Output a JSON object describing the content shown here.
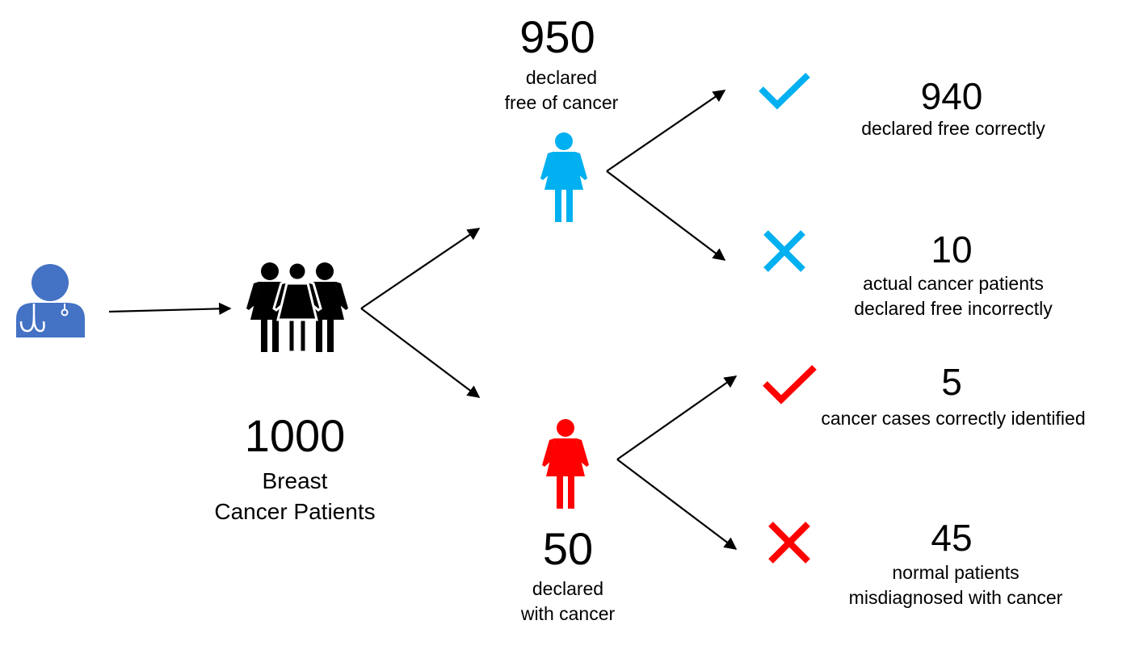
{
  "colors": {
    "doctor": "#4472C4",
    "negative": "#00B0F0",
    "positive": "#FF0000",
    "arrow": "#000000",
    "group": "#000000"
  },
  "icons": {
    "doctor": "doctor-icon",
    "group": "women-group-icon",
    "negative_person": "woman-icon",
    "positive_person": "woman-icon",
    "correct": "checkmark-icon",
    "incorrect": "cross-icon"
  },
  "total": {
    "value": "1000",
    "label_line1": "Breast",
    "label_line2": "Cancer Patients"
  },
  "negative": {
    "value": "950",
    "label_line1": "declared",
    "label_line2": "free of cancer"
  },
  "positive": {
    "value": "50",
    "label_line1": "declared",
    "label_line2": "with cancer"
  },
  "outcomes": {
    "true_negative": {
      "value": "940",
      "label_line1": "declared free correctly",
      "label_line2": ""
    },
    "false_negative": {
      "value": "10",
      "label_line1": "actual cancer patients",
      "label_line2": "declared free incorrectly"
    },
    "true_positive": {
      "value": "5",
      "label_line1": "cancer cases correctly identified",
      "label_line2": ""
    },
    "false_positive": {
      "value": "45",
      "label_line1": "normal patients",
      "label_line2": "misdiagnosed with cancer"
    }
  }
}
